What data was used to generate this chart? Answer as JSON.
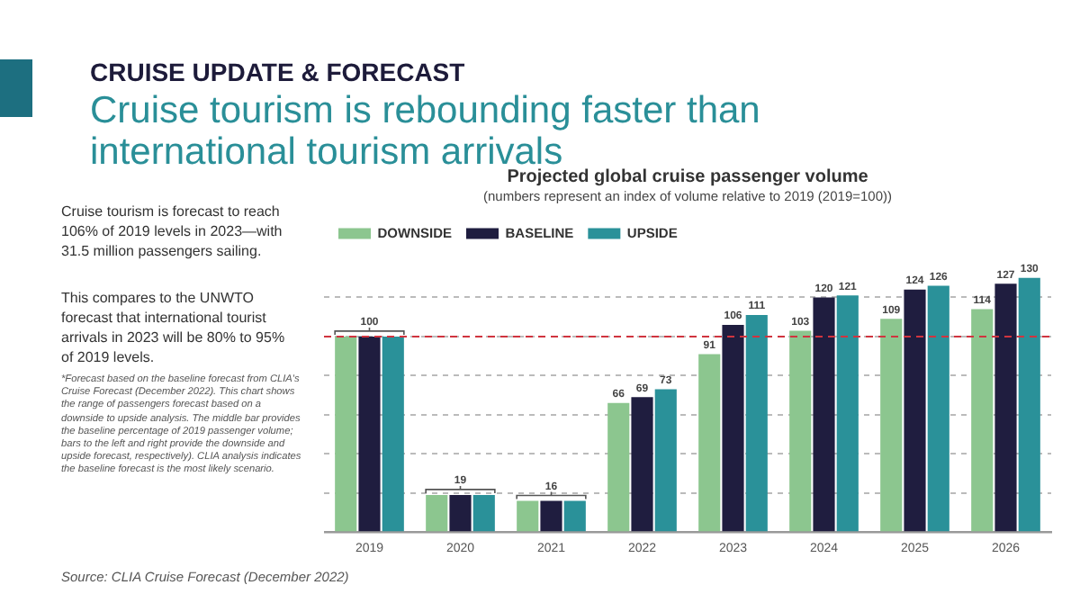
{
  "chart_data": {
    "type": "bar",
    "title": "Projected global cruise passenger volume",
    "subtitle": "(numbers represent an index of volume relative to 2019 (2019=100))",
    "categories": [
      "2019",
      "2020",
      "2021",
      "2022",
      "2023",
      "2024",
      "2025",
      "2026"
    ],
    "series": [
      {
        "name": "DOWNSIDE",
        "color": "#8cc68f",
        "values": [
          100,
          19,
          16,
          66,
          91,
          103,
          109,
          114
        ],
        "value_labels": [
          null,
          null,
          null,
          "66",
          "91",
          "103",
          "109",
          "114"
        ]
      },
      {
        "name": "BASELINE",
        "color": "#1f1d3f",
        "values": [
          100,
          19,
          16,
          69,
          106,
          120,
          124,
          127
        ],
        "value_labels": [
          null,
          null,
          null,
          "69",
          "106",
          "120",
          "124",
          "127"
        ]
      },
      {
        "name": "UPSIDE",
        "color": "#2a9199",
        "values": [
          100,
          19,
          16,
          73,
          111,
          121,
          126,
          130
        ],
        "value_labels": [
          null,
          null,
          null,
          "73",
          "111",
          "121",
          "126",
          "130"
        ]
      }
    ],
    "yticks": [
      {
        "value": 0,
        "label": null
      },
      {
        "value": 20,
        "label": null
      },
      {
        "value": 40,
        "label": null
      },
      {
        "value": 60,
        "label": null
      },
      {
        "value": 80,
        "label": null
      },
      {
        "value": 100,
        "label": null
      },
      {
        "value": 120,
        "label": null
      }
    ],
    "tick_labels": "x",
    "grid": "y",
    "legend": "top left",
    "ref_lines": [
      {
        "axis": "y",
        "value": 100,
        "color": "#d0343f",
        "line_style": "dashed"
      }
    ],
    "annotations": [
      "CRUISE UPDATE & FORECAST",
      "Cruise tourism is rebounding faster than international tourism arrivals",
      "Cruise tourism is forecast to reach 106% of 2019 levels in 2023—with 31.5 million passengers sailing.",
      "This compares to the UNWTO forecast that international tourist arrivals in 2023 will be 80% to 95% of 2019 levels.",
      "*Forecast based on the baseline forecast from CLIA's Cruise Forecast (December 2022). This chart shows the range of passengers forecast based on a downside to upside analysis. The middle bar provides the baseline percentage of 2019 passenger volume; bars to the left and right provide the downside and upside forecast, respectively). CLIA analysis indicates the baseline forecast is the most likely scenario.",
      "Source: CLIA Cruise Forecast (December 2022)",
      {
        "text": "100",
        "x": "2019",
        "y": 100
      },
      {
        "text": "19",
        "x": "2020",
        "y": 19
      },
      {
        "text": "16",
        "x": "2021",
        "y": 16
      }
    ]
  }
}
